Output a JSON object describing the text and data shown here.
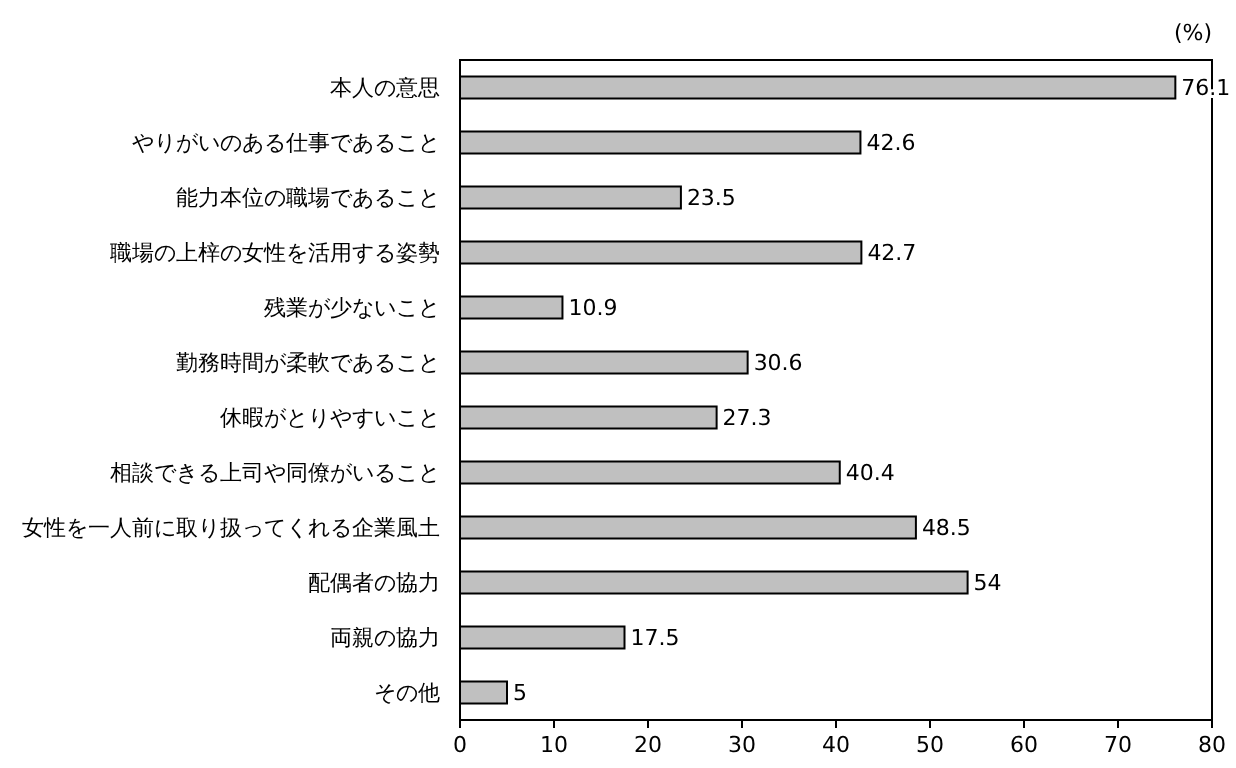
{
  "chart_data": {
    "type": "bar",
    "orientation": "horizontal",
    "xlabel": "(%)",
    "categories": [
      "本人の意思",
      "やりがいのある仕事であること",
      "能力本位の職場であること",
      "職場の上梓の女性を活用する姿勢",
      "残業が少ないこと",
      "勤務時間が柔軟であること",
      "休暇がとりやすいこと",
      "相談できる上司や同僚がいること",
      "女性を一人前に取り扱ってくれる企業風土",
      "配偶者の協力",
      "両親の協力",
      "その他"
    ],
    "values": [
      76.1,
      42.6,
      23.5,
      42.7,
      10.9,
      30.6,
      27.3,
      40.4,
      48.5,
      54,
      17.5,
      5
    ],
    "color": "#c0c0c0",
    "xlim": [
      0,
      80
    ],
    "xticks": [
      0,
      10,
      20,
      30,
      40,
      50,
      60,
      70,
      80
    ],
    "data_labels": true,
    "grid": false
  }
}
